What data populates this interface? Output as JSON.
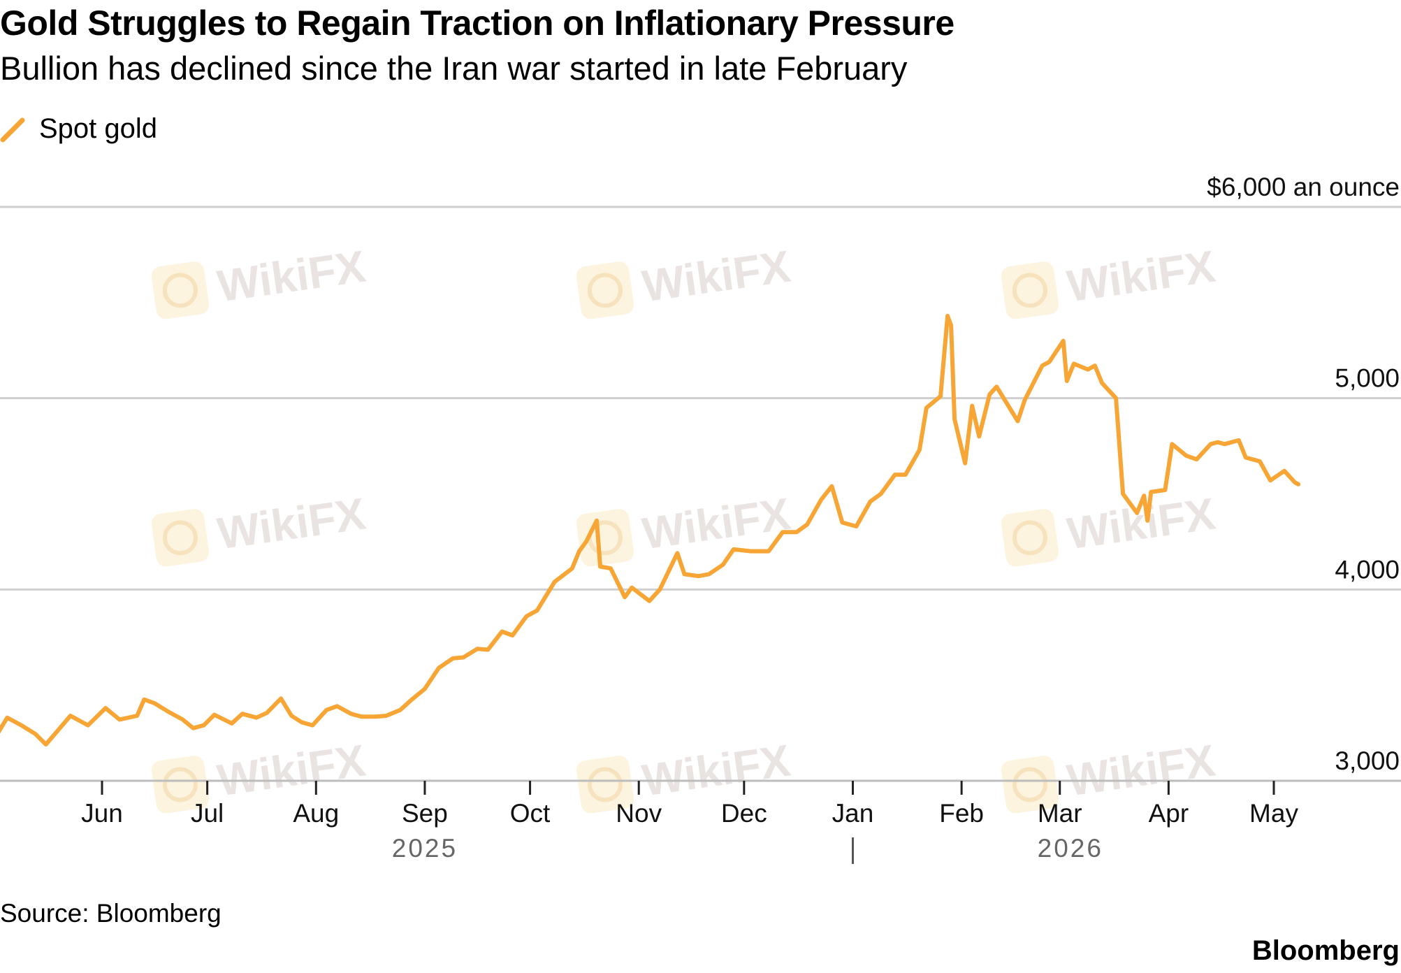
{
  "chart_data": {
    "type": "line",
    "title": "Gold Struggles to Regain Traction on Inflationary Pressure",
    "subtitle": "Bullion has declined since the Iran war started in late February",
    "unit_label": "$6,000 an ounce",
    "ylim": [
      3000,
      6000
    ],
    "y_ticks": [
      3000,
      4000,
      5000,
      6000
    ],
    "y_tick_labels": [
      "3,000",
      "4,000",
      "5,000"
    ],
    "grid": true,
    "legend_position": "top-left",
    "x_ticks": [
      {
        "date": "2025-06-01",
        "label": "Jun"
      },
      {
        "date": "2025-07-01",
        "label": "Jul"
      },
      {
        "date": "2025-08-01",
        "label": "Aug"
      },
      {
        "date": "2025-09-01",
        "label": "Sep"
      },
      {
        "date": "2025-10-01",
        "label": "Oct"
      },
      {
        "date": "2025-11-01",
        "label": "Nov"
      },
      {
        "date": "2025-12-01",
        "label": "Dec"
      },
      {
        "date": "2026-01-01",
        "label": "Jan"
      },
      {
        "date": "2026-02-01",
        "label": "Feb"
      },
      {
        "date": "2026-03-01",
        "label": "Mar"
      },
      {
        "date": "2026-04-01",
        "label": "Apr"
      },
      {
        "date": "2026-05-01",
        "label": "May"
      }
    ],
    "year_labels": [
      {
        "date": "2025-09-01",
        "label": "2025"
      },
      {
        "date": "2026-03-04",
        "label": "2026"
      }
    ],
    "year_divider_date": "2026-01-01",
    "series": [
      {
        "name": "Spot gold",
        "color": "#f7a535",
        "points": [
          [
            "2025-05-02",
            3240
          ],
          [
            "2025-05-05",
            3330
          ],
          [
            "2025-05-09",
            3290
          ],
          [
            "2025-05-13",
            3245
          ],
          [
            "2025-05-16",
            3190
          ],
          [
            "2025-05-20",
            3275
          ],
          [
            "2025-05-23",
            3340
          ],
          [
            "2025-05-28",
            3290
          ],
          [
            "2025-06-02",
            3380
          ],
          [
            "2025-06-06",
            3320
          ],
          [
            "2025-06-11",
            3340
          ],
          [
            "2025-06-13",
            3425
          ],
          [
            "2025-06-16",
            3405
          ],
          [
            "2025-06-20",
            3360
          ],
          [
            "2025-06-24",
            3320
          ],
          [
            "2025-06-27",
            3275
          ],
          [
            "2025-06-30",
            3290
          ],
          [
            "2025-07-03",
            3345
          ],
          [
            "2025-07-08",
            3300
          ],
          [
            "2025-07-11",
            3350
          ],
          [
            "2025-07-15",
            3330
          ],
          [
            "2025-07-18",
            3355
          ],
          [
            "2025-07-22",
            3430
          ],
          [
            "2025-07-25",
            3340
          ],
          [
            "2025-07-28",
            3305
          ],
          [
            "2025-07-31",
            3290
          ],
          [
            "2025-08-04",
            3370
          ],
          [
            "2025-08-07",
            3390
          ],
          [
            "2025-08-11",
            3350
          ],
          [
            "2025-08-14",
            3335
          ],
          [
            "2025-08-18",
            3335
          ],
          [
            "2025-08-21",
            3340
          ],
          [
            "2025-08-25",
            3370
          ],
          [
            "2025-08-28",
            3420
          ],
          [
            "2025-09-01",
            3480
          ],
          [
            "2025-09-05",
            3590
          ],
          [
            "2025-09-09",
            3640
          ],
          [
            "2025-09-12",
            3645
          ],
          [
            "2025-09-16",
            3690
          ],
          [
            "2025-09-19",
            3685
          ],
          [
            "2025-09-23",
            3780
          ],
          [
            "2025-09-26",
            3760
          ],
          [
            "2025-09-30",
            3860
          ],
          [
            "2025-10-03",
            3890
          ],
          [
            "2025-10-08",
            4040
          ],
          [
            "2025-10-13",
            4110
          ],
          [
            "2025-10-15",
            4200
          ],
          [
            "2025-10-17",
            4250
          ],
          [
            "2025-10-20",
            4360
          ],
          [
            "2025-10-21",
            4120
          ],
          [
            "2025-10-24",
            4110
          ],
          [
            "2025-10-28",
            3960
          ],
          [
            "2025-10-30",
            4010
          ],
          [
            "2025-11-04",
            3940
          ],
          [
            "2025-11-07",
            4000
          ],
          [
            "2025-11-12",
            4190
          ],
          [
            "2025-11-14",
            4080
          ],
          [
            "2025-11-18",
            4070
          ],
          [
            "2025-11-21",
            4080
          ],
          [
            "2025-11-25",
            4130
          ],
          [
            "2025-11-28",
            4210
          ],
          [
            "2025-12-03",
            4200
          ],
          [
            "2025-12-08",
            4200
          ],
          [
            "2025-12-12",
            4300
          ],
          [
            "2025-12-16",
            4300
          ],
          [
            "2025-12-19",
            4340
          ],
          [
            "2025-12-23",
            4470
          ],
          [
            "2025-12-26",
            4540
          ],
          [
            "2025-12-29",
            4350
          ],
          [
            "2026-01-02",
            4330
          ],
          [
            "2026-01-06",
            4460
          ],
          [
            "2026-01-09",
            4500
          ],
          [
            "2026-01-13",
            4600
          ],
          [
            "2026-01-16",
            4600
          ],
          [
            "2026-01-20",
            4730
          ],
          [
            "2026-01-22",
            4950
          ],
          [
            "2026-01-26",
            5010
          ],
          [
            "2026-01-28",
            5430
          ],
          [
            "2026-01-29",
            5380
          ],
          [
            "2026-01-30",
            4890
          ],
          [
            "2026-02-02",
            4660
          ],
          [
            "2026-02-04",
            4960
          ],
          [
            "2026-02-06",
            4800
          ],
          [
            "2026-02-09",
            5020
          ],
          [
            "2026-02-11",
            5060
          ],
          [
            "2026-02-13",
            5000
          ],
          [
            "2026-02-17",
            4880
          ],
          [
            "2026-02-19",
            4990
          ],
          [
            "2026-02-24",
            5170
          ],
          [
            "2026-02-26",
            5190
          ],
          [
            "2026-03-02",
            5300
          ],
          [
            "2026-03-03",
            5090
          ],
          [
            "2026-03-05",
            5180
          ],
          [
            "2026-03-09",
            5150
          ],
          [
            "2026-03-11",
            5170
          ],
          [
            "2026-03-13",
            5080
          ],
          [
            "2026-03-17",
            5000
          ],
          [
            "2026-03-19",
            4500
          ],
          [
            "2026-03-23",
            4400
          ],
          [
            "2026-03-25",
            4490
          ],
          [
            "2026-03-26",
            4360
          ],
          [
            "2026-03-27",
            4510
          ],
          [
            "2026-03-31",
            4520
          ],
          [
            "2026-04-02",
            4760
          ],
          [
            "2026-04-06",
            4700
          ],
          [
            "2026-04-09",
            4680
          ],
          [
            "2026-04-13",
            4760
          ],
          [
            "2026-04-15",
            4770
          ],
          [
            "2026-04-17",
            4760
          ],
          [
            "2026-04-21",
            4780
          ],
          [
            "2026-04-23",
            4690
          ],
          [
            "2026-04-27",
            4670
          ],
          [
            "2026-04-30",
            4570
          ],
          [
            "2026-05-04",
            4620
          ],
          [
            "2026-05-07",
            4560
          ],
          [
            "2026-05-08",
            4550
          ]
        ]
      }
    ]
  },
  "source": "Source: Bloomberg",
  "brand": "Bloomberg",
  "watermark": "WikiFX"
}
